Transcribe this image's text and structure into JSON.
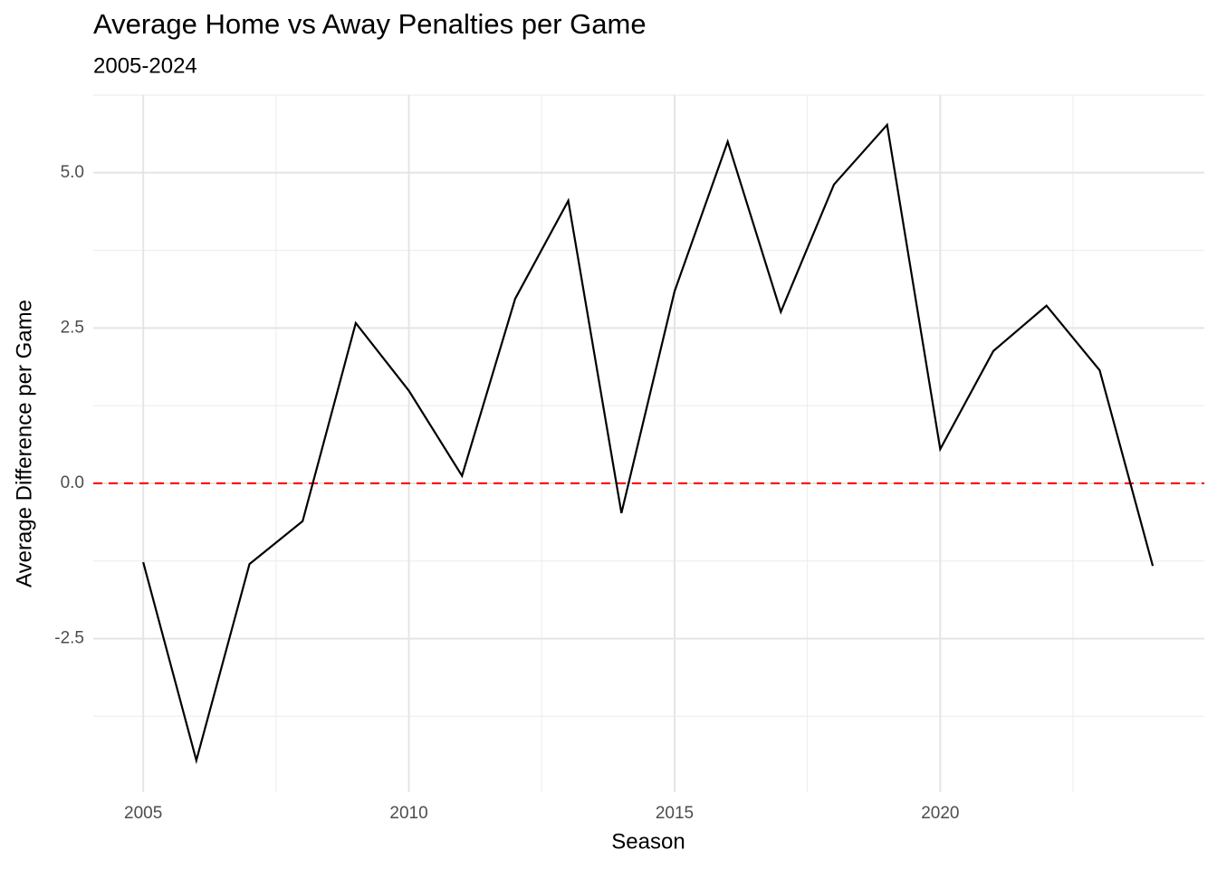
{
  "chart_data": {
    "type": "line",
    "title": "Average Home vs Away Penalties per Game",
    "subtitle": "2005-2024",
    "x_label": "Season",
    "y_label": "Average Difference per Game",
    "x": [
      2005,
      2006,
      2007,
      2008,
      2009,
      2010,
      2011,
      2012,
      2013,
      2014,
      2015,
      2016,
      2017,
      2018,
      2019,
      2020,
      2021,
      2022,
      2023,
      2024
    ],
    "series": [
      {
        "color": "#000000",
        "values": [
          -1.27,
          -4.46,
          -1.3,
          -0.61,
          2.58,
          1.49,
          0.12,
          2.97,
          4.55,
          -0.48,
          3.09,
          5.5,
          2.76,
          4.81,
          5.77,
          0.55,
          2.13,
          2.86,
          1.82,
          -1.33
        ]
      }
    ],
    "xlim": [
      2004.06,
      2024.97
    ],
    "ylim": [
      -4.97,
      6.25
    ],
    "xticks": [
      2005,
      2010,
      2015,
      2020
    ],
    "yticks": [
      {
        "value": -2.5,
        "label": "-2.5"
      },
      {
        "value": 0,
        "label": "0.0"
      },
      {
        "value": 2.5,
        "label": "2.5"
      },
      {
        "value": 5,
        "label": "5.0"
      }
    ],
    "grid": true,
    "hline": {
      "value": 0,
      "color": "#ff0000"
    }
  }
}
